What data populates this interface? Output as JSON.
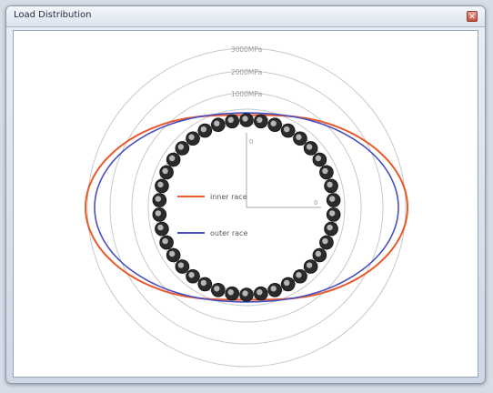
{
  "window": {
    "title": "Load Distribution",
    "close_icon": "close-icon"
  },
  "chart_data": {
    "type": "polar-line",
    "ring_labels": [
      "3000MPa",
      "2000MPa",
      "1000MPa"
    ],
    "ring_values_mpa": [
      3000,
      2000,
      1000
    ],
    "ball_count": 38,
    "series": [
      {
        "name": "inner race",
        "color": "#e85a2a"
      },
      {
        "name": "outer race",
        "color": "#4a4ec0"
      }
    ],
    "axis_labels": {
      "vertical": "0",
      "horizontal": "0"
    }
  }
}
